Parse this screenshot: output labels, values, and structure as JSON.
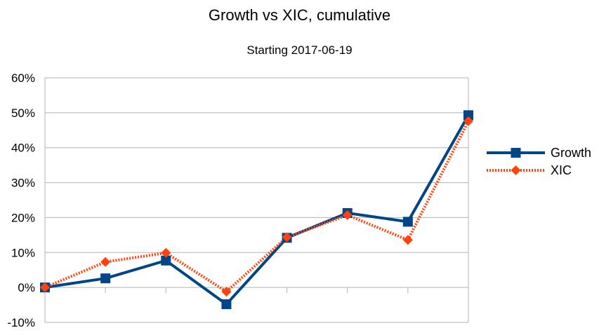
{
  "chart_data": {
    "type": "line",
    "title": "Growth vs XIC, cumulative",
    "subtitle": "Starting 2017-06-19",
    "xlabel": "",
    "ylabel": "",
    "x": [
      1,
      2,
      3,
      4,
      5,
      6,
      7,
      8
    ],
    "ylim": [
      -0.1,
      0.6
    ],
    "yticks": [
      {
        "value": 0.6,
        "label": "60%"
      },
      {
        "value": 0.5,
        "label": "50%"
      },
      {
        "value": 0.4,
        "label": "40%"
      },
      {
        "value": 0.3,
        "label": "30%"
      },
      {
        "value": 0.2,
        "label": "20%"
      },
      {
        "value": 0.1,
        "label": "10%"
      },
      {
        "value": 0.0,
        "label": "0%"
      },
      {
        "value": -0.1,
        "label": "-10%"
      }
    ],
    "grid": true,
    "legend": "right",
    "series": [
      {
        "name": "Growth",
        "values": [
          0.0,
          0.026,
          0.077,
          -0.048,
          0.142,
          0.213,
          0.188,
          0.493
        ],
        "color": "#004586",
        "marker": "square",
        "line": "solid"
      },
      {
        "name": "XIC",
        "values": [
          0.0,
          0.073,
          0.099,
          -0.012,
          0.144,
          0.207,
          0.136,
          0.476
        ],
        "color": "#ff420e",
        "marker": "diamond",
        "line": "dotted"
      }
    ]
  }
}
